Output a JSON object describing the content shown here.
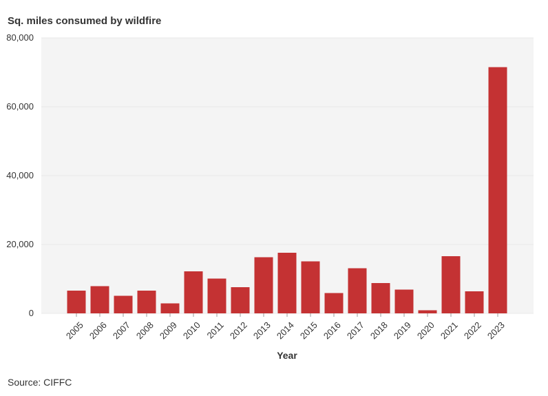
{
  "chart_data": {
    "type": "bar",
    "title": "Sq. miles consumed by wildfire",
    "xlabel": "Year",
    "ylabel": "",
    "source": "Source: CIFFC",
    "categories": [
      "2005",
      "2006",
      "2007",
      "2008",
      "2009",
      "2010",
      "2011",
      "2012",
      "2013",
      "2014",
      "2015",
      "2016",
      "2017",
      "2018",
      "2019",
      "2020",
      "2021",
      "2022",
      "2023"
    ],
    "values": [
      6600,
      7900,
      5100,
      6600,
      2900,
      12200,
      10100,
      7600,
      16300,
      17600,
      15100,
      5900,
      13100,
      8800,
      6900,
      900,
      16600,
      6400,
      71500
    ],
    "y_ticks": [
      0,
      20000,
      40000,
      60000,
      80000
    ],
    "y_tick_labels": [
      "0",
      "20,000",
      "40,000",
      "60,000",
      "80,000"
    ],
    "ylim": [
      0,
      80000
    ],
    "grid": true,
    "colors": {
      "bar": "#c43233",
      "plot_background": "#f4f4f4",
      "gridline": "#e8e8e8"
    }
  }
}
